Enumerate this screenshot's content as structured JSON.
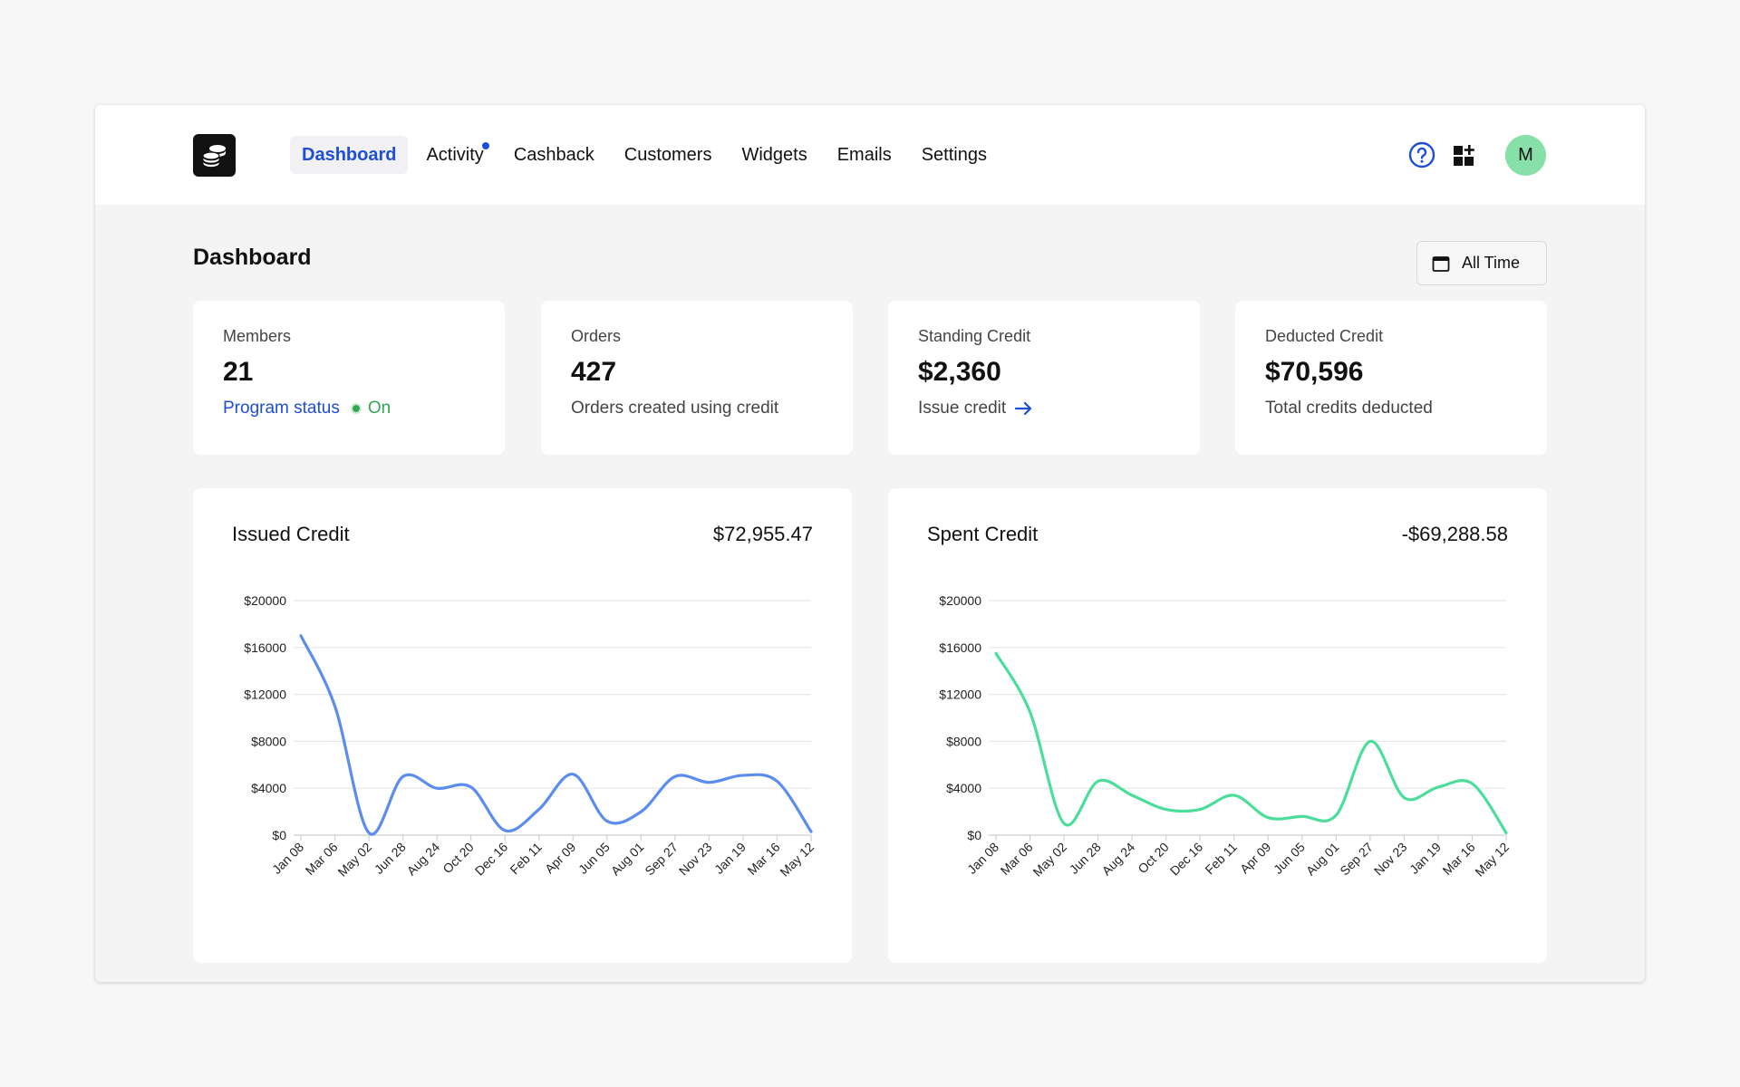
{
  "app": {
    "logo_icon": "coins-stack-icon",
    "nav": [
      {
        "label": "Dashboard",
        "active": true
      },
      {
        "label": "Activity",
        "badge": true
      },
      {
        "label": "Cashback"
      },
      {
        "label": "Customers"
      },
      {
        "label": "Widgets"
      },
      {
        "label": "Emails"
      },
      {
        "label": "Settings"
      }
    ],
    "avatar_initial": "M",
    "accent": "#1d4ed8"
  },
  "page": {
    "title": "Dashboard",
    "date_filter": "All Time"
  },
  "stats": {
    "members": {
      "label": "Members",
      "value": "21",
      "link": "Program status",
      "status": "On"
    },
    "orders": {
      "label": "Orders",
      "value": "427",
      "sub": "Orders created using credit"
    },
    "standing": {
      "label": "Standing Credit",
      "value": "$2,360",
      "link": "Issue credit"
    },
    "deducted": {
      "label": "Deducted Credit",
      "value": "$70,596",
      "sub": "Total credits deducted"
    }
  },
  "chart_data": [
    {
      "type": "line",
      "title": "Issued Credit",
      "total": "$72,955.47",
      "color": "#5b8def",
      "ylim": [
        0,
        20000
      ],
      "y_ticks": [
        "$0",
        "$4000",
        "$8000",
        "$12000",
        "$16000",
        "$20000"
      ],
      "categories": [
        "Jan 08",
        "Mar 06",
        "May 02",
        "Jun 28",
        "Aug 24",
        "Oct 20",
        "Dec 16",
        "Feb 11",
        "Apr 09",
        "Jun 05",
        "Aug 01",
        "Sep 27",
        "Nov 23",
        "Jan 19",
        "Mar 16",
        "May 12"
      ],
      "x": [
        0,
        0.5,
        1,
        1.5,
        2,
        2.5,
        3,
        3.5,
        4,
        4.5,
        5,
        5.5,
        6,
        6.5,
        7,
        7.5,
        8,
        8.5,
        9,
        9.5,
        10,
        10.5,
        11,
        11.5,
        12,
        12.5,
        13,
        13.5,
        14,
        14.5,
        15
      ],
      "values": [
        17000,
        11000,
        200,
        5000,
        4000,
        4100,
        400,
        2200,
        5200,
        1200,
        2000,
        5000,
        4500,
        5100,
        4600,
        300
      ]
    },
    {
      "type": "line",
      "title": "Spent Credit",
      "total": "-$69,288.58",
      "color": "#4ade9a",
      "ylim": [
        0,
        20000
      ],
      "y_ticks": [
        "$0",
        "$4000",
        "$8000",
        "$12000",
        "$16000",
        "$20000"
      ],
      "categories": [
        "Jan 08",
        "Mar 06",
        "May 02",
        "Jun 28",
        "Aug 24",
        "Oct 20",
        "Dec 16",
        "Feb 11",
        "Apr 09",
        "Jun 05",
        "Aug 01",
        "Sep 27",
        "Nov 23",
        "Jan 19",
        "Mar 16",
        "May 12"
      ],
      "values": [
        15500,
        10500,
        1000,
        4600,
        3400,
        2200,
        2200,
        3400,
        1500,
        1600,
        1700,
        8000,
        3200,
        4100,
        4400,
        200
      ]
    }
  ]
}
